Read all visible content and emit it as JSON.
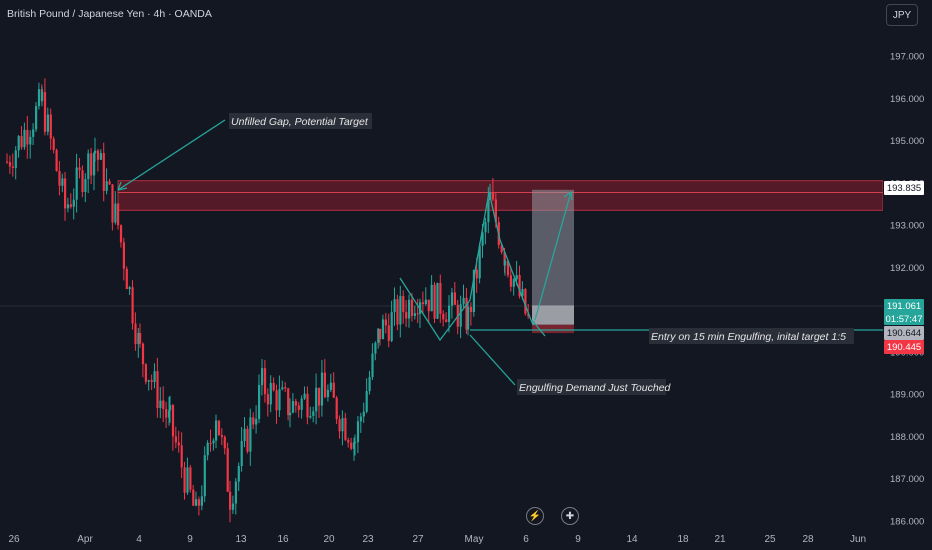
{
  "header": {
    "instrument_title": "British Pound / Japanese Yen · 4h · OANDA",
    "currency_button": "JPY"
  },
  "colors": {
    "background": "#131722",
    "bull": "#26a69a",
    "bear": "#f23645",
    "annotation_line": "#26a69a",
    "zone_fill": "#8b1e2b",
    "axis_text": "#b2b5be"
  },
  "chart_data": {
    "type": "candlestick",
    "y_axis": {
      "ticks": [
        "197.000",
        "196.000",
        "195.000",
        "194.000",
        "193.000",
        "192.000",
        "191.000",
        "190.000",
        "189.000",
        "188.000",
        "187.000",
        "186.000"
      ],
      "ylim": [
        185.9,
        197.6
      ]
    },
    "x_axis": {
      "tick_labels": [
        "26",
        "Apr",
        "4",
        "9",
        "13",
        "16",
        "20",
        "23",
        "27",
        "May",
        "6",
        "9",
        "14",
        "18",
        "21",
        "25",
        "28",
        "Jun"
      ]
    },
    "price_path": [
      {
        "x": "26 Mar",
        "y": 194.5
      },
      {
        "x": "28 Mar",
        "y": 195.9
      },
      {
        "x": "31 Mar",
        "y": 193.4
      },
      {
        "x": "2 Apr",
        "y": 194.8
      },
      {
        "x": "3 Apr",
        "y": 193.0
      },
      {
        "x": "5 Apr",
        "y": 190.0
      },
      {
        "x": "7 Apr",
        "y": 188.3
      },
      {
        "x": "9 Apr",
        "y": 186.1
      },
      {
        "x": "10 Apr",
        "y": 188.6
      },
      {
        "x": "11 Apr",
        "y": 186.6
      },
      {
        "x": "14 Apr",
        "y": 189.2
      },
      {
        "x": "17 Apr",
        "y": 188.7
      },
      {
        "x": "21 Apr",
        "y": 189.1
      },
      {
        "x": "23 Apr",
        "y": 187.9
      },
      {
        "x": "25 Apr",
        "y": 190.5
      },
      {
        "x": "27 Apr",
        "y": 191.4
      },
      {
        "x": "30 Apr",
        "y": 190.8
      },
      {
        "x": "1 May",
        "y": 193.6
      },
      {
        "x": "2 May",
        "y": 192.3
      },
      {
        "x": "6 May",
        "y": 190.6
      }
    ],
    "price_levels": {
      "last_price": "191.061",
      "countdown": "01:57:47",
      "target_label": "193.835",
      "entry_label": "190.644",
      "stop_label": "190.445"
    },
    "supply_zone": {
      "top": 194.05,
      "bottom": 193.35
    },
    "position": {
      "entry": 190.644,
      "target": 193.835,
      "stop": 190.445
    }
  },
  "annotations": {
    "gap": "Unfilled Gap, Potential Target",
    "entry": "Entry on 15 min Engulfing, inital target 1:5",
    "demand": "Engulfing Demand Just Touched"
  },
  "event_icons": [
    "lightning-icon",
    "uk-flag-icon"
  ]
}
